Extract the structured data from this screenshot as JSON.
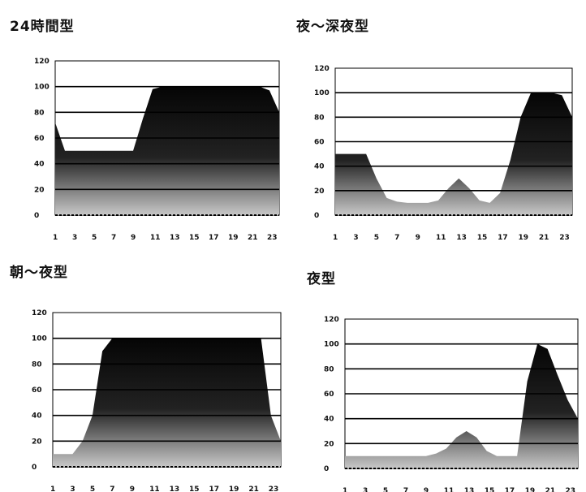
{
  "chart_data": [
    {
      "type": "area",
      "title": "24時間型",
      "x": [
        1,
        2,
        3,
        4,
        5,
        6,
        7,
        8,
        9,
        10,
        11,
        12,
        13,
        14,
        15,
        16,
        17,
        18,
        19,
        20,
        21,
        22,
        23,
        24
      ],
      "values": [
        72,
        50,
        50,
        50,
        50,
        50,
        50,
        50,
        50,
        75,
        98,
        100,
        100,
        100,
        100,
        100,
        100,
        100,
        100,
        100,
        100,
        100,
        97,
        80
      ],
      "x_tick_labels": [
        "1",
        "3",
        "5",
        "7",
        "9",
        "11",
        "13",
        "15",
        "17",
        "19",
        "21",
        "23"
      ],
      "y_tick_labels": [
        "120",
        "100",
        "80",
        "60",
        "40",
        "20",
        "0"
      ],
      "ylim": [
        0,
        120
      ],
      "grid": true
    },
    {
      "type": "area",
      "title": "夜～深夜型",
      "x": [
        1,
        2,
        3,
        4,
        5,
        6,
        7,
        8,
        9,
        10,
        11,
        12,
        13,
        14,
        15,
        16,
        17,
        18,
        19,
        20,
        21,
        22,
        23,
        24
      ],
      "values": [
        50,
        50,
        50,
        50,
        30,
        14,
        11,
        10,
        10,
        10,
        12,
        22,
        30,
        22,
        12,
        10,
        18,
        45,
        80,
        100,
        100,
        100,
        98,
        80
      ],
      "x_tick_labels": [
        "1",
        "3",
        "5",
        "7",
        "9",
        "11",
        "13",
        "15",
        "17",
        "19",
        "21",
        "23"
      ],
      "y_tick_labels": [
        "120",
        "100",
        "80",
        "60",
        "40",
        "20",
        "0"
      ],
      "ylim": [
        0,
        120
      ],
      "grid": true
    },
    {
      "type": "area",
      "title": "朝～夜型",
      "x": [
        1,
        2,
        3,
        4,
        5,
        6,
        7,
        8,
        9,
        10,
        11,
        12,
        13,
        14,
        15,
        16,
        17,
        18,
        19,
        20,
        21,
        22,
        23,
        24
      ],
      "values": [
        10,
        10,
        10,
        20,
        40,
        90,
        100,
        100,
        100,
        100,
        100,
        100,
        100,
        100,
        100,
        100,
        100,
        100,
        100,
        100,
        100,
        100,
        40,
        20
      ],
      "x_tick_labels": [
        "1",
        "3",
        "5",
        "7",
        "9",
        "11",
        "13",
        "15",
        "17",
        "19",
        "21",
        "23"
      ],
      "y_tick_labels": [
        "120",
        "100",
        "80",
        "60",
        "40",
        "20",
        "0"
      ],
      "ylim": [
        0,
        120
      ],
      "grid": true
    },
    {
      "type": "area",
      "title": "夜型",
      "x": [
        1,
        2,
        3,
        4,
        5,
        6,
        7,
        8,
        9,
        10,
        11,
        12,
        13,
        14,
        15,
        16,
        17,
        18,
        19,
        20,
        21,
        22,
        23,
        24
      ],
      "values": [
        10,
        10,
        10,
        10,
        10,
        10,
        10,
        10,
        10,
        12,
        16,
        25,
        30,
        25,
        14,
        10,
        10,
        10,
        70,
        100,
        96,
        75,
        55,
        40
      ],
      "x_tick_labels": [
        "1",
        "3",
        "5",
        "7",
        "9",
        "11",
        "13",
        "15",
        "17",
        "19",
        "21",
        "23"
      ],
      "y_tick_labels": [
        "120",
        "100",
        "80",
        "60",
        "40",
        "20",
        "0"
      ],
      "ylim": [
        0,
        120
      ],
      "grid": true
    }
  ],
  "colors": {
    "fill_top": "#050505",
    "fill_bottom": "#c8c8c8",
    "grid": "#000000"
  }
}
